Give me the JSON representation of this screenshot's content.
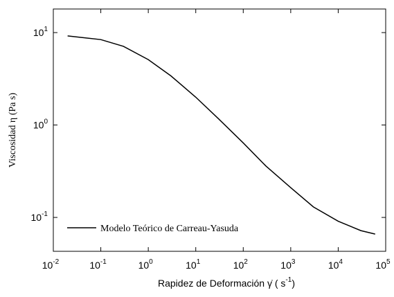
{
  "chart_data": {
    "type": "line",
    "x_label": {
      "text": "Rapidez de Deformación  γ̇  ( s",
      "sup": "-1",
      "end": ")"
    },
    "y_label": "Viscosidad  η (Pa s)",
    "x": [
      0.02,
      0.1,
      0.3,
      1,
      3,
      10,
      30,
      100,
      300,
      1000,
      3000,
      10000,
      30000,
      60000
    ],
    "series": [
      {
        "name": "Modelo Teórico de Carreau-Yasuda",
        "color": "#000000",
        "values": [
          9.2,
          8.4,
          7.1,
          5.1,
          3.4,
          2.0,
          1.17,
          0.64,
          0.36,
          0.21,
          0.13,
          0.091,
          0.072,
          0.066
        ]
      }
    ],
    "xlim": [
      0.01,
      100000
    ],
    "ylim": [
      0.043,
      18
    ],
    "xscale": "log",
    "yscale": "log",
    "xticks": [
      {
        "value": 0.01,
        "label": "10",
        "sup": "-2"
      },
      {
        "value": 0.1,
        "label": "10",
        "sup": "-1"
      },
      {
        "value": 1,
        "label": "10",
        "sup": "0"
      },
      {
        "value": 10,
        "label": "10",
        "sup": "1"
      },
      {
        "value": 100,
        "label": "10",
        "sup": "2"
      },
      {
        "value": 1000,
        "label": "10",
        "sup": "3"
      },
      {
        "value": 10000,
        "label": "10",
        "sup": "4"
      },
      {
        "value": 100000,
        "label": "10",
        "sup": "5"
      }
    ],
    "yticks": [
      {
        "value": 0.1,
        "label": "10",
        "sup": "-1"
      },
      {
        "value": 1,
        "label": "10",
        "sup": "0"
      },
      {
        "value": 10,
        "label": "10",
        "sup": "1"
      }
    ],
    "legend": "lower left",
    "grid": false
  }
}
